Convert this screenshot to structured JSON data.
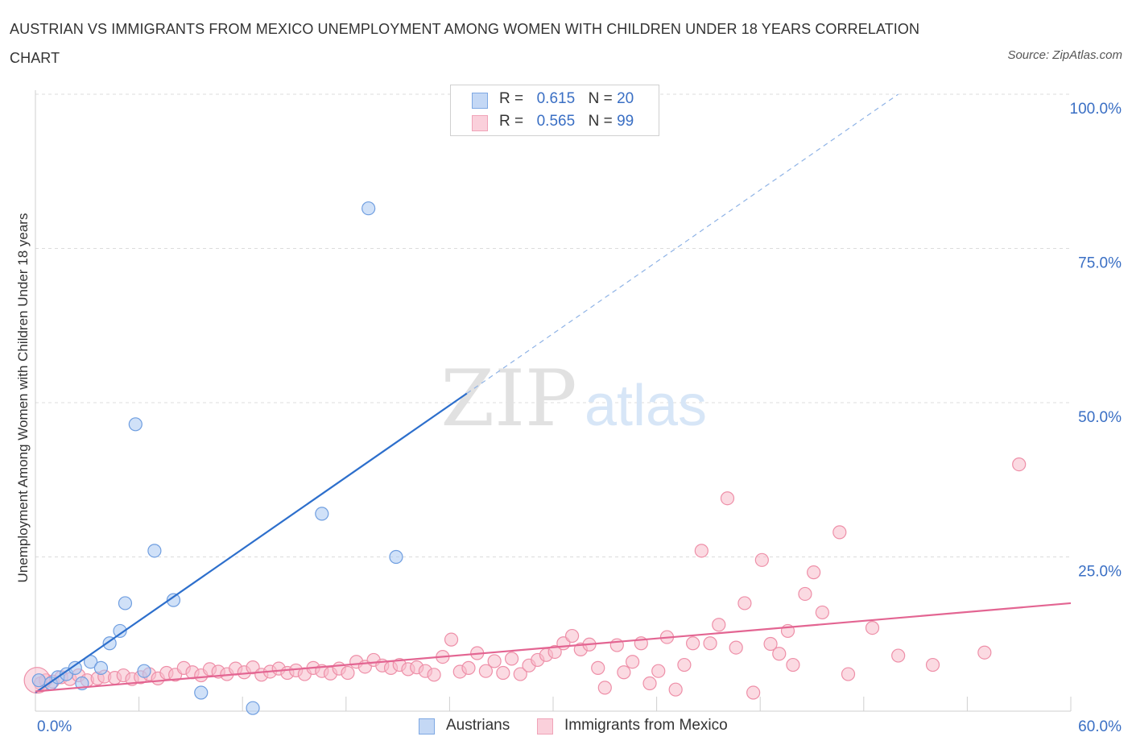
{
  "title": "AUSTRIAN VS IMMIGRANTS FROM MEXICO UNEMPLOYMENT AMONG WOMEN WITH CHILDREN UNDER 18 YEARS CORRELATION CHART",
  "source": "Source: ZipAtlas.com",
  "watermark": {
    "zip": "ZIP",
    "atlas": "atlas"
  },
  "legend": {
    "r_label": "R =",
    "n_label": "N =",
    "rows": [
      {
        "r": "0.615",
        "n": "20",
        "color": "#a9c8f2"
      },
      {
        "r": "0.565",
        "n": "99",
        "color": "#f7bccb"
      }
    ]
  },
  "bottom_legend": [
    {
      "label": "Austrians",
      "color": "#a9c8f2"
    },
    {
      "label": "Immigrants from Mexico",
      "color": "#f7bccb"
    }
  ],
  "chart_data": {
    "type": "scatter",
    "title": "AUSTRIAN VS IMMIGRANTS FROM MEXICO UNEMPLOYMENT AMONG WOMEN WITH CHILDREN UNDER 18 YEARS CORRELATION CHART",
    "xlabel": "",
    "ylabel": "Unemployment Among Women with Children Under 18 years",
    "xlim": [
      0,
      60
    ],
    "ylim": [
      0,
      100
    ],
    "x_tick_labels": [
      "0.0%",
      "60.0%"
    ],
    "y_tick_labels": [
      "100.0%",
      "75.0%",
      "50.0%",
      "25.0%"
    ],
    "y_ticks": [
      100,
      75,
      50,
      25
    ],
    "grid": true,
    "series": [
      {
        "name": "Austrians",
        "color": "#a9c8f2",
        "edge": "#6f9ee0",
        "line_color": "#2d6fcc",
        "trend": {
          "x0": 0,
          "y0": 3.0,
          "x1": 25,
          "y1": 51.5,
          "dash_to_x": 50,
          "dash_to_y": 100
        },
        "points": [
          {
            "x": 0.2,
            "y": 5.0
          },
          {
            "x": 0.9,
            "y": 4.5
          },
          {
            "x": 1.3,
            "y": 5.5
          },
          {
            "x": 1.8,
            "y": 6.0
          },
          {
            "x": 2.3,
            "y": 7.0
          },
          {
            "x": 2.7,
            "y": 4.5
          },
          {
            "x": 3.2,
            "y": 8.0
          },
          {
            "x": 3.8,
            "y": 7.0
          },
          {
            "x": 4.3,
            "y": 11.0
          },
          {
            "x": 4.9,
            "y": 13.0
          },
          {
            "x": 5.2,
            "y": 17.5
          },
          {
            "x": 5.8,
            "y": 46.5
          },
          {
            "x": 6.3,
            "y": 6.5
          },
          {
            "x": 6.9,
            "y": 26.0
          },
          {
            "x": 8.0,
            "y": 18.0
          },
          {
            "x": 9.6,
            "y": 3.0
          },
          {
            "x": 12.6,
            "y": 0.5
          },
          {
            "x": 16.6,
            "y": 32.0
          },
          {
            "x": 19.3,
            "y": 81.5
          },
          {
            "x": 20.9,
            "y": 25.0
          }
        ]
      },
      {
        "name": "Immigrants from Mexico",
        "color": "#f7bccb",
        "edge": "#ee8fa8",
        "line_color": "#e36592",
        "trend": {
          "x0": 0,
          "y0": 3.2,
          "x1": 60,
          "y1": 17.5
        },
        "points": [
          {
            "x": 0.3,
            "y": 4.5
          },
          {
            "x": 0.6,
            "y": 5.0
          },
          {
            "x": 1.0,
            "y": 4.8
          },
          {
            "x": 1.5,
            "y": 5.5
          },
          {
            "x": 2.0,
            "y": 5.2
          },
          {
            "x": 2.5,
            "y": 5.8
          },
          {
            "x": 3.0,
            "y": 5.0
          },
          {
            "x": 3.6,
            "y": 5.3
          },
          {
            "x": 4.0,
            "y": 5.6
          },
          {
            "x": 4.6,
            "y": 5.4
          },
          {
            "x": 5.1,
            "y": 5.8
          },
          {
            "x": 5.6,
            "y": 5.2
          },
          {
            "x": 6.1,
            "y": 5.5
          },
          {
            "x": 6.6,
            "y": 6.0
          },
          {
            "x": 7.1,
            "y": 5.3
          },
          {
            "x": 7.6,
            "y": 6.2
          },
          {
            "x": 8.1,
            "y": 5.9
          },
          {
            "x": 8.6,
            "y": 7.0
          },
          {
            "x": 9.1,
            "y": 6.3
          },
          {
            "x": 9.6,
            "y": 5.8
          },
          {
            "x": 10.1,
            "y": 6.8
          },
          {
            "x": 10.6,
            "y": 6.4
          },
          {
            "x": 11.1,
            "y": 6.0
          },
          {
            "x": 11.6,
            "y": 6.9
          },
          {
            "x": 12.1,
            "y": 6.3
          },
          {
            "x": 12.6,
            "y": 7.1
          },
          {
            "x": 13.1,
            "y": 5.9
          },
          {
            "x": 13.6,
            "y": 6.4
          },
          {
            "x": 14.1,
            "y": 6.9
          },
          {
            "x": 14.6,
            "y": 6.2
          },
          {
            "x": 15.1,
            "y": 6.6
          },
          {
            "x": 15.6,
            "y": 6.0
          },
          {
            "x": 16.1,
            "y": 7.0
          },
          {
            "x": 16.6,
            "y": 6.5
          },
          {
            "x": 17.1,
            "y": 6.1
          },
          {
            "x": 17.6,
            "y": 6.9
          },
          {
            "x": 18.1,
            "y": 6.2
          },
          {
            "x": 18.6,
            "y": 8.0
          },
          {
            "x": 19.1,
            "y": 7.2
          },
          {
            "x": 19.6,
            "y": 8.3
          },
          {
            "x": 20.1,
            "y": 7.4
          },
          {
            "x": 20.6,
            "y": 7.0
          },
          {
            "x": 21.1,
            "y": 7.5
          },
          {
            "x": 21.6,
            "y": 6.8
          },
          {
            "x": 22.1,
            "y": 7.1
          },
          {
            "x": 22.6,
            "y": 6.5
          },
          {
            "x": 23.1,
            "y": 5.9
          },
          {
            "x": 23.6,
            "y": 8.8
          },
          {
            "x": 24.1,
            "y": 11.6
          },
          {
            "x": 24.6,
            "y": 6.4
          },
          {
            "x": 25.1,
            "y": 7.0
          },
          {
            "x": 25.6,
            "y": 9.4
          },
          {
            "x": 26.1,
            "y": 6.5
          },
          {
            "x": 26.6,
            "y": 8.1
          },
          {
            "x": 27.1,
            "y": 6.2
          },
          {
            "x": 27.6,
            "y": 8.5
          },
          {
            "x": 28.1,
            "y": 6.0
          },
          {
            "x": 28.6,
            "y": 7.4
          },
          {
            "x": 29.1,
            "y": 8.3
          },
          {
            "x": 29.6,
            "y": 9.1
          },
          {
            "x": 30.1,
            "y": 9.6
          },
          {
            "x": 30.6,
            "y": 11.0
          },
          {
            "x": 31.1,
            "y": 12.2
          },
          {
            "x": 31.6,
            "y": 10.0
          },
          {
            "x": 32.1,
            "y": 10.8
          },
          {
            "x": 32.6,
            "y": 7.0
          },
          {
            "x": 33.0,
            "y": 3.8
          },
          {
            "x": 33.7,
            "y": 10.7
          },
          {
            "x": 34.1,
            "y": 6.3
          },
          {
            "x": 34.6,
            "y": 8.0
          },
          {
            "x": 35.1,
            "y": 11.0
          },
          {
            "x": 35.6,
            "y": 4.5
          },
          {
            "x": 36.1,
            "y": 6.5
          },
          {
            "x": 36.6,
            "y": 12.0
          },
          {
            "x": 37.1,
            "y": 3.5
          },
          {
            "x": 37.6,
            "y": 7.5
          },
          {
            "x": 38.1,
            "y": 11.0
          },
          {
            "x": 38.6,
            "y": 26.0
          },
          {
            "x": 39.1,
            "y": 11.0
          },
          {
            "x": 39.6,
            "y": 14.0
          },
          {
            "x": 40.1,
            "y": 34.5
          },
          {
            "x": 40.6,
            "y": 10.3
          },
          {
            "x": 41.1,
            "y": 17.5
          },
          {
            "x": 41.6,
            "y": 3.0
          },
          {
            "x": 42.1,
            "y": 24.5
          },
          {
            "x": 42.6,
            "y": 10.9
          },
          {
            "x": 43.1,
            "y": 9.3
          },
          {
            "x": 43.6,
            "y": 13.0
          },
          {
            "x": 43.9,
            "y": 7.5
          },
          {
            "x": 44.6,
            "y": 19.0
          },
          {
            "x": 45.1,
            "y": 22.5
          },
          {
            "x": 45.6,
            "y": 16.0
          },
          {
            "x": 46.6,
            "y": 29.0
          },
          {
            "x": 47.1,
            "y": 6.0
          },
          {
            "x": 48.5,
            "y": 13.5
          },
          {
            "x": 50.0,
            "y": 9.0
          },
          {
            "x": 52.0,
            "y": 7.5
          },
          {
            "x": 55.0,
            "y": 9.5
          },
          {
            "x": 57.0,
            "y": 40.0
          }
        ]
      }
    ]
  }
}
